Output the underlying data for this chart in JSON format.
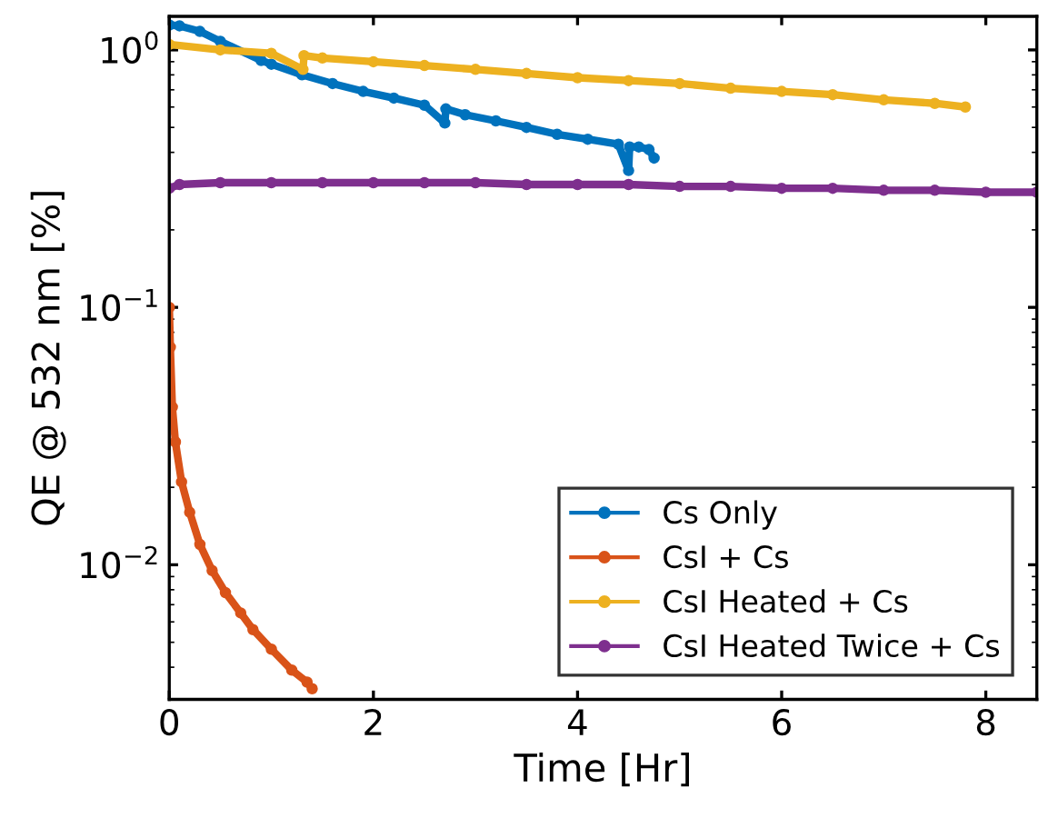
{
  "chart_data": {
    "type": "line",
    "xlabel": "Time [Hr]",
    "ylabel": "QE @ 532 nm [%]",
    "log": "y",
    "xlim": [
      0,
      8.5
    ],
    "ylim": [
      0.003,
      1.35
    ],
    "xticks": [
      0,
      2,
      4,
      6,
      8
    ],
    "yticks": [
      {
        "value": 0.01,
        "label": "10$^{−2}$"
      },
      {
        "value": 0.1,
        "label": "10$^{−1}$"
      },
      {
        "value": 1,
        "label": "10$^{0}$"
      }
    ],
    "legend": "bottom right",
    "marker": "circle",
    "line_style": "solid",
    "grid": false,
    "series": [
      {
        "name": "Cs Only",
        "color": "#0072bd",
        "x": [
          0,
          0.1,
          0.3,
          0.5,
          0.9,
          1.0,
          1.3,
          1.6,
          1.9,
          2.2,
          2.5,
          2.7,
          2.71,
          2.9,
          3.2,
          3.5,
          3.8,
          4.1,
          4.4,
          4.5,
          4.51,
          4.6,
          4.7,
          4.75
        ],
        "values": [
          1.25,
          1.24,
          1.18,
          1.08,
          0.91,
          0.88,
          0.8,
          0.74,
          0.69,
          0.65,
          0.61,
          0.52,
          0.59,
          0.56,
          0.53,
          0.5,
          0.47,
          0.45,
          0.43,
          0.34,
          0.42,
          0.42,
          0.41,
          0.38
        ]
      },
      {
        "name": "CsI + Cs",
        "color": "#d95319",
        "x": [
          0,
          0.01,
          0.03,
          0.06,
          0.12,
          0.2,
          0.3,
          0.42,
          0.55,
          0.7,
          0.82,
          1.0,
          1.2,
          1.35,
          1.4
        ],
        "values": [
          0.1,
          0.07,
          0.041,
          0.03,
          0.021,
          0.016,
          0.012,
          0.0095,
          0.0078,
          0.0065,
          0.0056,
          0.0047,
          0.0039,
          0.0035,
          0.0033
        ]
      },
      {
        "name": "CsI Heated + Cs",
        "color": "#edb120",
        "x": [
          0,
          0.5,
          1.0,
          1.31,
          1.32,
          1.5,
          2.0,
          2.5,
          3.0,
          3.5,
          4.0,
          4.5,
          5.0,
          5.5,
          6.0,
          6.5,
          7.0,
          7.5,
          7.8
        ],
        "values": [
          1.05,
          1.0,
          0.97,
          0.84,
          0.95,
          0.93,
          0.9,
          0.87,
          0.84,
          0.81,
          0.78,
          0.76,
          0.74,
          0.71,
          0.69,
          0.67,
          0.64,
          0.62,
          0.6
        ]
      },
      {
        "name": "CsI Heated Twice + Cs",
        "color": "#7e2f8e",
        "x": [
          0,
          0.1,
          0.5,
          1.0,
          1.5,
          2.0,
          2.5,
          3.0,
          3.5,
          4.0,
          4.5,
          5.0,
          5.5,
          6.0,
          6.5,
          7.0,
          7.5,
          8.0,
          8.5
        ],
        "values": [
          0.29,
          0.3,
          0.305,
          0.305,
          0.305,
          0.305,
          0.305,
          0.305,
          0.3,
          0.3,
          0.3,
          0.295,
          0.295,
          0.29,
          0.29,
          0.285,
          0.285,
          0.28,
          0.28
        ]
      }
    ]
  }
}
